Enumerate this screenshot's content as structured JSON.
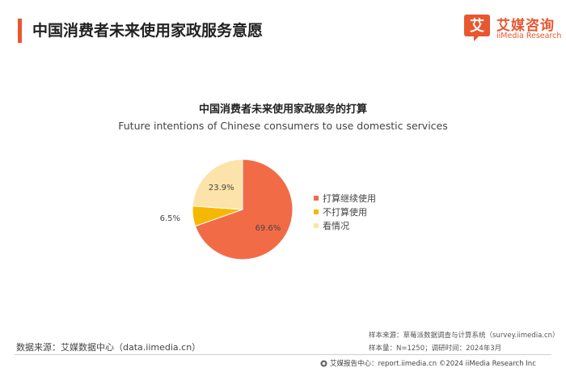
{
  "header": {
    "title": "中国消费者未来使用家政服务意愿",
    "logo_cn": "艾媒咨询",
    "logo_en": "iiMedia Research",
    "logo_mark_char": "艾"
  },
  "colors": {
    "accent": "#e8572f",
    "continue": "#f26b47",
    "not_plan": "#f5b800",
    "undecided": "#fce3a9"
  },
  "chart_data": {
    "type": "pie",
    "title": "中国消费者未来使用家政服务的打算",
    "subtitle": "Future intentions of Chinese consumers to use domestic services",
    "slices": [
      {
        "label": "打算继续使用",
        "value": 69.6,
        "value_label": "69.6%"
      },
      {
        "label": "不打算使用",
        "value": 6.5,
        "value_label": "6.5%"
      },
      {
        "label": "看情况",
        "value": 23.9,
        "value_label": "23.9%"
      }
    ],
    "legend_position": "right"
  },
  "footer": {
    "data_source": "数据来源：艾媒数据中心（data.iimedia.cn）",
    "sample_source": "样本来源：草莓派数据调查与计算系统（survey.iimedia.cn）",
    "sample_size": "样本量：N=1250；调研时间：2024年3月",
    "report_center": "艾媒报告中心：report.iimedia.cn    ©2024  iiMedia Research  Inc"
  }
}
